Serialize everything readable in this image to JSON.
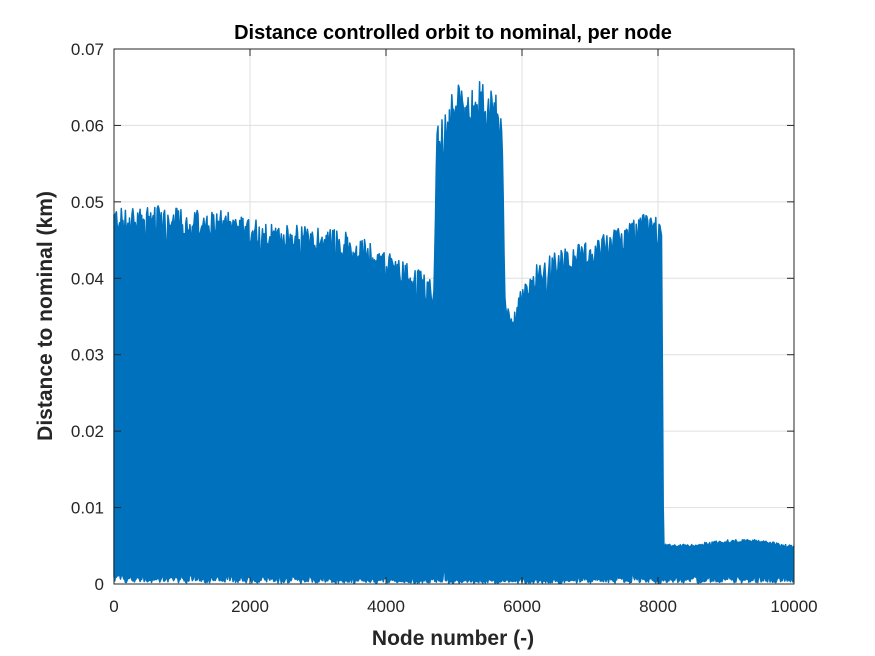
{
  "chart_data": {
    "type": "area",
    "title": "Distance controlled orbit to nominal, per node",
    "xlabel": "Node number (-)",
    "ylabel": "Distance to nominal (km)",
    "xlim": [
      0,
      10000
    ],
    "ylim": [
      0,
      0.07
    ],
    "x_ticks": [
      0,
      2000,
      4000,
      6000,
      8000,
      10000
    ],
    "x_tick_labels": [
      "0",
      "2000",
      "4000",
      "6000",
      "8000",
      "10000"
    ],
    "y_ticks": [
      0,
      0.01,
      0.02,
      0.03,
      0.04,
      0.05,
      0.06,
      0.07
    ],
    "y_tick_labels": [
      "0",
      "0.01",
      "0.02",
      "0.03",
      "0.04",
      "0.05",
      "0.06",
      "0.07"
    ],
    "grid": true,
    "series_color": "#0072BD",
    "upper_envelope": {
      "x": [
        0,
        200,
        500,
        800,
        1000,
        1500,
        2000,
        2500,
        3000,
        3500,
        4000,
        4300,
        4500,
        4700,
        4750,
        4900,
        5000,
        5200,
        5400,
        5500,
        5700,
        5750,
        5800,
        5900,
        6000,
        6200,
        6500,
        7000,
        7500,
        7800,
        8000,
        8050,
        8080,
        8500,
        9000,
        9500,
        10000
      ],
      "y": [
        0.0495,
        0.049,
        0.0495,
        0.0495,
        0.049,
        0.049,
        0.048,
        0.047,
        0.047,
        0.046,
        0.0435,
        0.042,
        0.041,
        0.0395,
        0.06,
        0.062,
        0.066,
        0.064,
        0.066,
        0.065,
        0.065,
        0.039,
        0.037,
        0.036,
        0.039,
        0.042,
        0.0435,
        0.045,
        0.047,
        0.0485,
        0.0495,
        0.0495,
        0.0052,
        0.0052,
        0.0058,
        0.0058,
        0.005
      ]
    },
    "lower_envelope": {
      "x": [
        0,
        1000,
        2000,
        3000,
        4000,
        5000,
        6000,
        7000,
        8000,
        8080,
        9000,
        10000
      ],
      "y": [
        0.001,
        0.0008,
        0.0008,
        0.0006,
        0.0006,
        0.0005,
        0.0005,
        0.0006,
        0.0007,
        0.0008,
        0.0008,
        0.0008
      ]
    }
  }
}
